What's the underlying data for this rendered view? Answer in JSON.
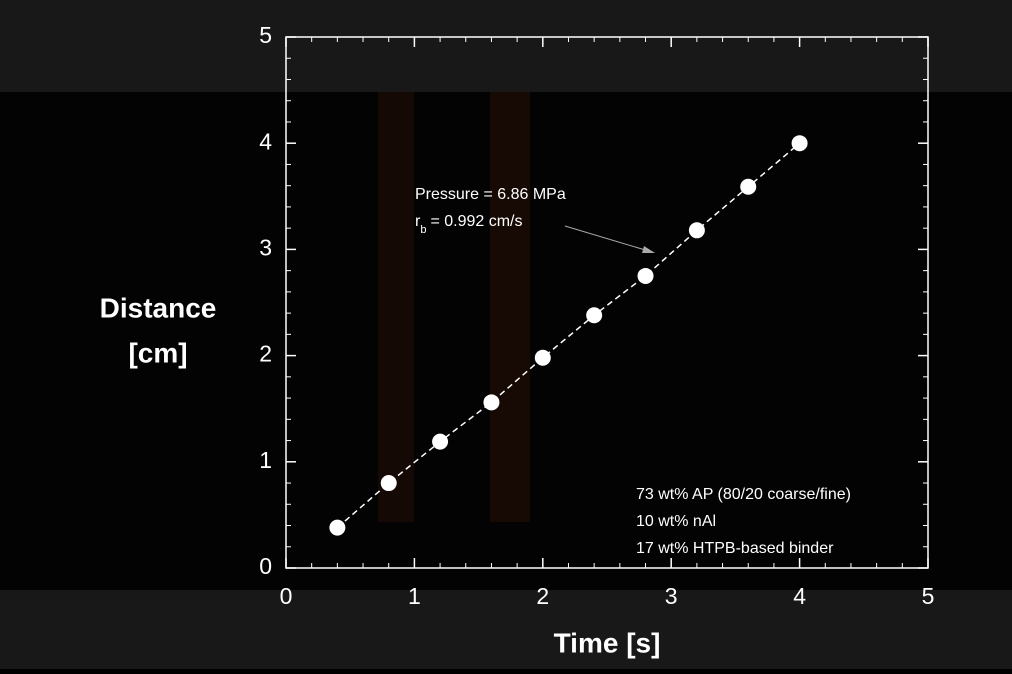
{
  "chart_data": {
    "type": "scatter",
    "xlabel": "Time [s]",
    "ylabel": [
      "Distance",
      "[cm]"
    ],
    "x": [
      0.4,
      0.8,
      1.2,
      1.6,
      2.0,
      2.4,
      2.8,
      3.2,
      3.6,
      4.0
    ],
    "series": [
      {
        "color": "#ffffff",
        "values": [
          0.38,
          0.8,
          1.19,
          1.56,
          1.98,
          2.38,
          2.75,
          3.18,
          3.59,
          4.0
        ]
      }
    ],
    "xlim": [
      0,
      5
    ],
    "xticks": [
      0,
      1,
      2,
      3,
      4,
      5
    ],
    "ylim": [
      0,
      5
    ],
    "yticks": [
      0,
      1,
      2,
      3,
      4,
      5
    ],
    "minor_per_major": 5,
    "annotations": {
      "pressure": "Pressure = 6.86 MPa",
      "rate": {
        "symbol": "r",
        "subscript": "b",
        "text": "= 0.992 cm/s"
      },
      "composition": [
        "73 wt% AP (80/20 coarse/fine)",
        "10 wt% nAl",
        "17 wt% HTPB-based binder"
      ]
    }
  }
}
